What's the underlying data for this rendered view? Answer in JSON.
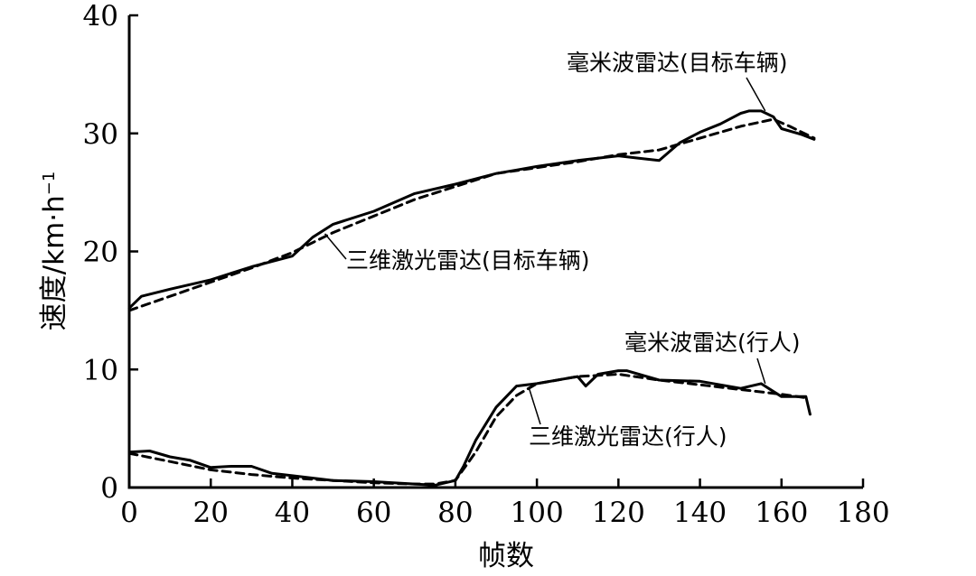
{
  "chart_data": {
    "type": "line",
    "xlabel": "帧数",
    "ylabel": "速度/km·h",
    "ylabel_superscript": "−1",
    "xlim": [
      0,
      180
    ],
    "ylim": [
      0,
      40
    ],
    "xticks": [
      0,
      20,
      40,
      60,
      80,
      100,
      120,
      140,
      160,
      180
    ],
    "yticks": [
      0,
      10,
      20,
      30,
      40
    ],
    "grid": false,
    "legend": "none",
    "series": [
      {
        "name": "毫米波雷达(目标车辆)",
        "style": "solid",
        "x": [
          0,
          3,
          10,
          20,
          30,
          40,
          45,
          50,
          60,
          70,
          80,
          90,
          95,
          100,
          110,
          120,
          125,
          130,
          135,
          140,
          145,
          150,
          152,
          155,
          158,
          160,
          165,
          168
        ],
        "y": [
          15.2,
          16.2,
          16.8,
          17.6,
          18.7,
          19.6,
          21.2,
          22.3,
          23.4,
          24.9,
          25.7,
          26.6,
          26.9,
          27.2,
          27.7,
          28.1,
          27.9,
          27.7,
          29.2,
          30.1,
          30.8,
          31.7,
          31.9,
          31.9,
          31.4,
          30.4,
          29.9,
          29.5
        ]
      },
      {
        "name": "三维激光雷达(目标车辆)",
        "style": "dashed",
        "x": [
          0,
          10,
          20,
          30,
          40,
          50,
          60,
          70,
          80,
          90,
          100,
          110,
          120,
          130,
          140,
          150,
          158,
          162,
          168
        ],
        "y": [
          15.0,
          16.2,
          17.4,
          18.6,
          19.9,
          21.6,
          23.0,
          24.4,
          25.5,
          26.6,
          27.1,
          27.6,
          28.2,
          28.6,
          29.6,
          30.6,
          31.2,
          30.6,
          29.6
        ]
      },
      {
        "name": "毫米波雷达(行人)",
        "style": "solid",
        "x": [
          0,
          5,
          10,
          15,
          20,
          25,
          30,
          35,
          40,
          50,
          60,
          70,
          75,
          80,
          82,
          85,
          90,
          95,
          100,
          110,
          112,
          115,
          120,
          122,
          130,
          140,
          150,
          155,
          160,
          166,
          167
        ],
        "y": [
          3.0,
          3.1,
          2.6,
          2.3,
          1.7,
          1.8,
          1.8,
          1.2,
          1.0,
          0.6,
          0.5,
          0.3,
          0.2,
          0.6,
          1.8,
          4.0,
          6.8,
          8.6,
          8.8,
          9.4,
          8.6,
          9.6,
          9.9,
          9.9,
          9.1,
          9.0,
          8.4,
          8.8,
          7.7,
          7.7,
          6.2
        ]
      },
      {
        "name": "三维激光雷达(行人)",
        "style": "dashed",
        "x": [
          0,
          10,
          20,
          30,
          40,
          50,
          60,
          70,
          75,
          80,
          85,
          90,
          95,
          100,
          110,
          120,
          130,
          140,
          150,
          160,
          166
        ],
        "y": [
          2.9,
          2.2,
          1.5,
          1.1,
          0.8,
          0.6,
          0.4,
          0.3,
          0.3,
          0.6,
          3.0,
          6.0,
          7.8,
          8.8,
          9.4,
          9.6,
          9.1,
          8.7,
          8.3,
          7.9,
          7.6
        ]
      }
    ],
    "annotations": [
      {
        "text": "毫米波雷达(目标车辆)",
        "target_x": 156,
        "target_y": 31.9
      },
      {
        "text": "三维激光雷达(目标车辆)",
        "target_x": 48,
        "target_y": 21.5
      },
      {
        "text": "毫米波雷达(行人)",
        "target_x": 156,
        "target_y": 8.8
      },
      {
        "text": "三维激光雷达(行人)",
        "target_x": 98,
        "target_y": 8.5
      }
    ]
  }
}
